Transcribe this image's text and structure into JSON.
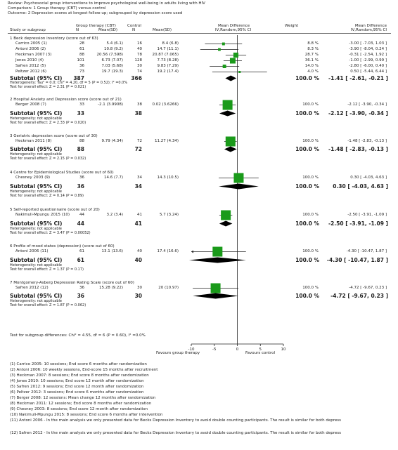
{
  "header": {
    "review": "Review:  Psychosocial group interventions to improve psychological well-being in adults living with HIV",
    "comparison": "Comparison:  1 Group therapy (CBT) versus control",
    "outcome": "Outcome:   2 Depression scores at longest follow-up; subgrouped by depression score used"
  },
  "columns": {
    "study": "Study or subgroup",
    "group1": "Group therapy (CBT)",
    "group2": "Control",
    "n": "N",
    "mean_sd": "Mean(SD)",
    "md_top": "Mean Difference",
    "md_sub": "IV,Random,95% CI",
    "weight": "Weight",
    "md2_top": "Mean Difference",
    "md2_sub": "IV,Random,95% CI"
  },
  "subgroups": [
    {
      "title": "1 Beck depression inventory (score out of 63)",
      "studies": [
        {
          "name": "Carrico 2005 (1)",
          "n1": "28",
          "m1": "5.4 (6.1)",
          "n2": "16",
          "m2": "8.4 (6.8)",
          "weight": "8.8 %",
          "ci_text": "-3.00 [ -7.03, 1.03 ]"
        },
        {
          "name": "Antoni 2006 (2)",
          "n1": "61",
          "m1": "10.8 (9.2)",
          "n2": "40",
          "m2": "14.7 (11.1)",
          "weight": "8.3 %",
          "ci_text": "-3.90 [ -8.04, 0.24 ]"
        },
        {
          "name": "Heckman 2007 (3)",
          "n1": "88",
          "m1": "20.56 (7.598)",
          "n2": "78",
          "m2": "20.87 (7.065)",
          "weight": "28.7 %",
          "ci_text": "-0.31 [ -2.54, 1.92 ]"
        },
        {
          "name": "Jones 2010 (4)",
          "n1": "101",
          "m1": "6.73 (7.07)",
          "n2": "128",
          "m2": "7.73 (8.28)",
          "weight": "36.1 %",
          "ci_text": "-1.00 [ -2.99, 0.99 ]"
        },
        {
          "name": "Safren 2012 (5)",
          "n1": "36",
          "m1": "7.03 (5.68)",
          "n2": "30",
          "m2": "9.83 (7.29)",
          "weight": "14.0 %",
          "ci_text": "-2.80 [ -6.00, 0.40 ]"
        },
        {
          "name": "Peltzer 2012 (6)",
          "n1": "73",
          "m1": "19.7 (19.3)",
          "n2": "74",
          "m2": "19.2 (17.4)",
          "weight": "4.0 %",
          "ci_text": "0.50 [ -5.44, 6.44 ]"
        }
      ],
      "subtotal": {
        "label": "Subtotal (95% CI)",
        "n1": "387",
        "n2": "366",
        "weight": "100.0 %",
        "ci_text": "-1.41 [ -2.61, -0.21 ]"
      },
      "notes": [
        "Heterogeneity: Tau² = 0.0; Chi² = 4.20, df = 5 (P = 0.52); I² =0.0%",
        "Test for overall effect: Z = 2.31 (P = 0.021)"
      ]
    },
    {
      "title": "2 Hospital Anxiety and Depression score (score out of 21)",
      "studies": [
        {
          "name": "Berger 2008 (7)",
          "n1": "33",
          "m1": "-2.1 (3.9908)",
          "n2": "38",
          "m2": "0.02 (3.6266)",
          "weight": "100.0 %",
          "ci_text": "-2.12 [ -3.90, -0.34 ]"
        }
      ],
      "subtotal": {
        "label": "Subtotal (95% CI)",
        "n1": "33",
        "n2": "38",
        "weight": "100.0 %",
        "ci_text": "-2.12 [ -3.90, -0.34 ]"
      },
      "notes": [
        "Heterogeneity: not applicable",
        "Test for overall effect: Z = 2.33 (P = 0.020)"
      ]
    },
    {
      "title": "3 Geriatric depression score (score out of 30)",
      "studies": [
        {
          "name": "Heckman 2011 (8)",
          "n1": "88",
          "m1": "9.79 (4.34)",
          "n2": "72",
          "m2": "11.27 (4.34)",
          "weight": "100.0 %",
          "ci_text": "-1.48 [ -2.83, -0.13 ]"
        }
      ],
      "subtotal": {
        "label": "Subtotal (95% CI)",
        "n1": "88",
        "n2": "72",
        "weight": "100.0 %",
        "ci_text": "-1.48 [ -2.83, -0.13 ]"
      },
      "notes": [
        "Heterogeneity: not applicable",
        "Test for overall effect: Z = 2.15 (P = 0.032)"
      ]
    },
    {
      "title": "4 Centre for Epidemiological Studies (score out of 60)",
      "studies": [
        {
          "name": "Chesney 2003 (9)",
          "n1": "36",
          "m1": "14.6 (7.7)",
          "n2": "34",
          "m2": "14.3 (10.5)",
          "weight": "100.0 %",
          "ci_text": "0.30 [ -4.03, 4.63 ]"
        }
      ],
      "subtotal": {
        "label": "Subtotal (95% CI)",
        "n1": "36",
        "n2": "34",
        "weight": "100.0 %",
        "ci_text": "0.30 [ -4.03, 4.63 ]"
      },
      "notes": [
        "Heterogeneity: not applicable",
        "Test for overall effect: Z = 0.14 (P = 0.89)"
      ]
    },
    {
      "title": "5 Self-reported questionnaire (score out of 20)",
      "studies": [
        {
          "name": "Nakimuli-Mpungu 2015 (10)",
          "n1": "44",
          "m1": "3.2 (3.4)",
          "n2": "41",
          "m2": "5.7 (3.24)",
          "weight": "100.0 %",
          "ci_text": "-2.50 [ -3.91, -1.09 ]"
        }
      ],
      "subtotal": {
        "label": "Subtotal (95% CI)",
        "n1": "44",
        "n2": "41",
        "weight": "100.0 %",
        "ci_text": "-2.50 [ -3.91, -1.09 ]"
      },
      "notes": [
        "Heterogeneity: not applicable",
        "Test for overall effect: Z = 3.47 (P = 0.00052)"
      ]
    },
    {
      "title": "6 Profile of mood states (depression) (score out of 60)",
      "studies": [
        {
          "name": "Antoni 2006 (11)",
          "n1": "61",
          "m1": "13.1 (13.6)",
          "n2": "40",
          "m2": "17.4 (16.6)",
          "weight": "100.0 %",
          "ci_text": "-4.30 [ -10.47, 1.87 ]"
        }
      ],
      "subtotal": {
        "label": "Subtotal (95% CI)",
        "n1": "61",
        "n2": "40",
        "weight": "100.0 %",
        "ci_text": "-4.30 [ -10.47, 1.87 ]"
      },
      "notes": [
        "Heterogeneity: not applicable",
        "Test for overall effect: Z = 1.37 (P = 0.17)"
      ]
    },
    {
      "title": "7 Montgomery-Asberg Depression Rating Scale (score out of 60)",
      "studies": [
        {
          "name": "Safren 2012 (12)",
          "n1": "36",
          "m1": "15.28 (9.22)",
          "n2": "30",
          "m2": "20 (10.97)",
          "weight": "100.0 %",
          "ci_text": "-4.72 [ -9.67, 0.23 ]"
        }
      ],
      "subtotal": {
        "label": "Subtotal (95% CI)",
        "n1": "36",
        "n2": "30",
        "weight": "100.0 %",
        "ci_text": "-4.72 [ -9.67, 0.23 ]"
      },
      "notes": [
        "Heterogeneity: not applicable",
        "Test for overall effect: Z = 1.87 (P = 0.062)"
      ]
    }
  ],
  "subgroup_diff": "Test for subgroup differences: Chi² = 4.55, df = 6 (P = 0.60), I² =0.0%",
  "axis": {
    "ticks": [
      "-10",
      "-5",
      "0",
      "5",
      "10"
    ],
    "left_label": "Favours group therapy",
    "right_label": "Favours control"
  },
  "footnotes": [
    "(1) Carrico 2005: 10 sessions; End score 6 months after randomization",
    "(2) Antoni 2006: 10 weekly sessions, End-score 15 months after recruitment",
    "(3) Heckman 2007: 8 sessions; End score 8 months after randomization",
    "(4) Jones 2010: 10 sessions; End score 12 month after randomization",
    "(5) Safren 2012: 9 sessions; End score 12 month after randomization",
    "(6) Peltzer 2012: 3 sessions; End score 6 months after randomization",
    "(7) Berger 2008: 12 sessions: Mean change 12 months after randomization",
    "(8) Heckman 2011: 12 sessions; End score 8 months after randomization",
    "(9) Chesney 2003: 8 sessions; End score 12 month after randomization",
    "(10) Nakimuli-Mpungu 2015: 8 sessions; End score 6 months after intervention",
    "(11) Antoni 2006 - In the main analysis we only presented data for Becks Depression Inventory to avoid double counting participants. The result is similar for both depress",
    "(12) Safren 2012 - In the main analysis we only presented data for Becks Depression Inventory to avoid double counting participants. The result is similar for both depress"
  ],
  "chart_data": {
    "type": "forest",
    "xlim": [
      -10,
      10
    ],
    "xticks": [
      -10,
      -5,
      0,
      5,
      10
    ],
    "xlabel_left": "Favours group therapy",
    "xlabel_right": "Favours control",
    "subgroups": [
      {
        "studies": [
          {
            "md": -3.0,
            "lo": -7.03,
            "hi": 1.03,
            "w": 8.8
          },
          {
            "md": -3.9,
            "lo": -8.04,
            "hi": 0.24,
            "w": 8.3
          },
          {
            "md": -0.31,
            "lo": -2.54,
            "hi": 1.92,
            "w": 28.7
          },
          {
            "md": -1.0,
            "lo": -2.99,
            "hi": 0.99,
            "w": 36.1
          },
          {
            "md": -2.8,
            "lo": -6.0,
            "hi": 0.4,
            "w": 14.0
          },
          {
            "md": 0.5,
            "lo": -5.44,
            "hi": 6.44,
            "w": 4.0
          }
        ],
        "pooled": {
          "md": -1.41,
          "lo": -2.61,
          "hi": -0.21
        }
      },
      {
        "studies": [
          {
            "md": -2.12,
            "lo": -3.9,
            "hi": -0.34,
            "w": 100
          }
        ],
        "pooled": {
          "md": -2.12,
          "lo": -3.9,
          "hi": -0.34
        }
      },
      {
        "studies": [
          {
            "md": -1.48,
            "lo": -2.83,
            "hi": -0.13,
            "w": 100
          }
        ],
        "pooled": {
          "md": -1.48,
          "lo": -2.83,
          "hi": -0.13
        }
      },
      {
        "studies": [
          {
            "md": 0.3,
            "lo": -4.03,
            "hi": 4.63,
            "w": 100
          }
        ],
        "pooled": {
          "md": 0.3,
          "lo": -4.03,
          "hi": 4.63
        }
      },
      {
        "studies": [
          {
            "md": -2.5,
            "lo": -3.91,
            "hi": -1.09,
            "w": 100
          }
        ],
        "pooled": {
          "md": -2.5,
          "lo": -3.91,
          "hi": -1.09
        }
      },
      {
        "studies": [
          {
            "md": -4.3,
            "lo": -10.47,
            "hi": 1.87,
            "w": 100
          }
        ],
        "pooled": {
          "md": -4.3,
          "lo": -10.47,
          "hi": 1.87
        }
      },
      {
        "studies": [
          {
            "md": -4.72,
            "lo": -9.67,
            "hi": 0.23,
            "w": 100
          }
        ],
        "pooled": {
          "md": -4.72,
          "lo": -9.67,
          "hi": 0.23
        }
      }
    ]
  }
}
